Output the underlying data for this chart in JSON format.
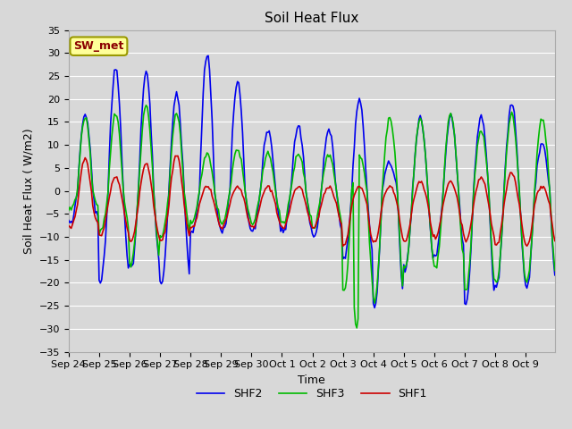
{
  "title": "Soil Heat Flux",
  "ylabel": "Soil Heat Flux ( W/m2)",
  "xlabel": "Time",
  "ylim": [
    -35,
    35
  ],
  "yticks": [
    -35,
    -30,
    -25,
    -20,
    -15,
    -10,
    -5,
    0,
    5,
    10,
    15,
    20,
    25,
    30,
    35
  ],
  "line_colors": {
    "SHF1": "#cc0000",
    "SHF2": "#0000ee",
    "SHF3": "#00bb00"
  },
  "line_widths": {
    "SHF1": 1.2,
    "SHF2": 1.2,
    "SHF3": 1.2
  },
  "background_color": "#d8d8d8",
  "plot_bg_color": "#d8d8d8",
  "annotation_text": "SW_met",
  "annotation_color": "#8b0000",
  "annotation_bg": "#ffff99",
  "annotation_border": "#999900",
  "title_fontsize": 11,
  "label_fontsize": 9,
  "tick_fontsize": 8,
  "legend_fontsize": 9
}
